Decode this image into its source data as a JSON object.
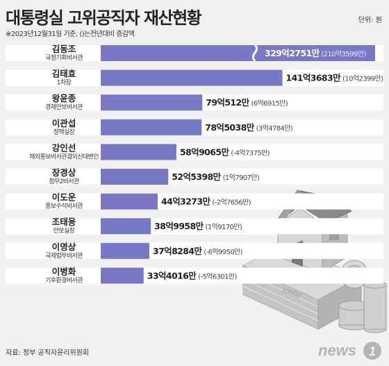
{
  "title": "대통령실 고위공직자 재산현황",
  "unit": "단위: 원",
  "note": "※2023년12월31일 기준, ()는전년대비 증감액",
  "source": "자료: 정부 공직자윤리위원회",
  "logo_text": "news1",
  "colors": {
    "bar": "#7779c6",
    "row": "#ffffff",
    "background": "#f1f1f1"
  },
  "chart_data": {
    "type": "bar",
    "orientation": "horizontal",
    "unit": "원",
    "axis_broken_on_first_bar": true,
    "rows": [
      {
        "name": "김동조",
        "title": "국정기획비서관",
        "value_label": "329억2751만",
        "change_label": "(210억3599만)",
        "value": 32927510000,
        "change": 21035990000
      },
      {
        "name": "김태효",
        "title": "1차장",
        "value_label": "141억3683만",
        "change_label": "(10억2399만)",
        "value": 14136830000,
        "change": 1023990000
      },
      {
        "name": "왕윤종",
        "title": "경제안보비서관",
        "value_label": "79억512만",
        "change_label": "(6억6915만)",
        "value": 7905120000,
        "change": 669150000
      },
      {
        "name": "이관섭",
        "title": "정책실장",
        "value_label": "78억5038만",
        "change_label": "(3억4784만)",
        "value": 7850380000,
        "change": 347840000
      },
      {
        "name": "강인선",
        "title": "해외홍보비서관겸외신대변인",
        "value_label": "58억9065만",
        "change_label": "(-4억7375만)",
        "value": 5890650000,
        "change": -473750000
      },
      {
        "name": "장경상",
        "title": "정무2비서관",
        "value_label": "52억5398만",
        "change_label": "(1억7907만)",
        "value": 5253980000,
        "change": 179070000
      },
      {
        "name": "이도운",
        "title": "홍보수석비서관",
        "value_label": "44억3273만",
        "change_label": "(-2억7656만)",
        "value": 4432730000,
        "change": -276560000
      },
      {
        "name": "조태용",
        "title": "안보실장",
        "value_label": "38억9958만",
        "change_label": "(1억9170만)",
        "value": 3899580000,
        "change": 191700000
      },
      {
        "name": "이영상",
        "title": "국제법무비서관",
        "value_label": "37억8284만",
        "change_label": "(-6억9950만)",
        "value": 3782840000,
        "change": -699500000
      },
      {
        "name": "이병화",
        "title": "기후환경비서관",
        "value_label": "33억4016만",
        "change_label": "(-5억6301만)",
        "value": 3340160000,
        "change": -563010000
      }
    ]
  }
}
